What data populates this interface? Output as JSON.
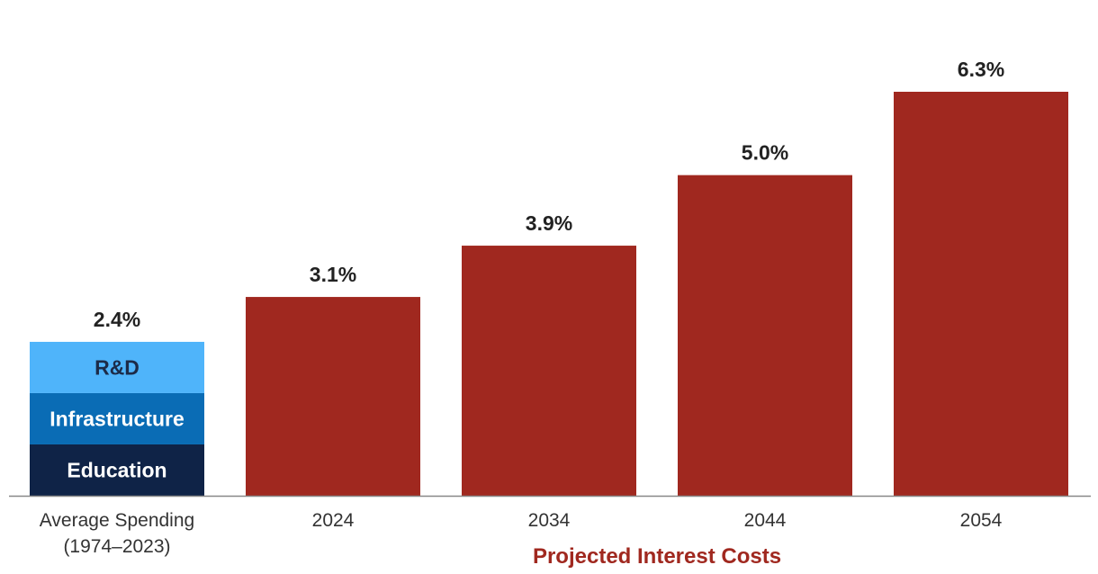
{
  "chart_data": {
    "type": "bar",
    "ylim": [
      0,
      7.0
    ],
    "grid": false,
    "value_suffix": "%",
    "stacked_bar": {
      "category": "Average Spending",
      "category_sub": "(1974–2023)",
      "total_label": "2.4%",
      "total": 2.4,
      "segments": [
        {
          "name": "Education",
          "value": 0.8,
          "color": "#0f2347",
          "text_color": "#ffffff"
        },
        {
          "name": "Infrastructure",
          "value": 0.8,
          "color": "#0a6cb5",
          "text_color": "#ffffff"
        },
        {
          "name": "R&D",
          "value": 0.8,
          "color": "#4fb4fa",
          "text_color": "#1c2b48"
        }
      ]
    },
    "categories": [
      "2024",
      "2034",
      "2044",
      "2054"
    ],
    "series": [
      {
        "values": [
          3.1,
          3.9,
          5.0,
          6.3
        ],
        "labels": [
          "3.1%",
          "3.9%",
          "5.0%",
          "6.3%"
        ],
        "color": "#a0281f"
      }
    ],
    "group_label": "Projected Interest Costs",
    "group_label_color": "#a0281f",
    "axis_color": "#888888"
  }
}
